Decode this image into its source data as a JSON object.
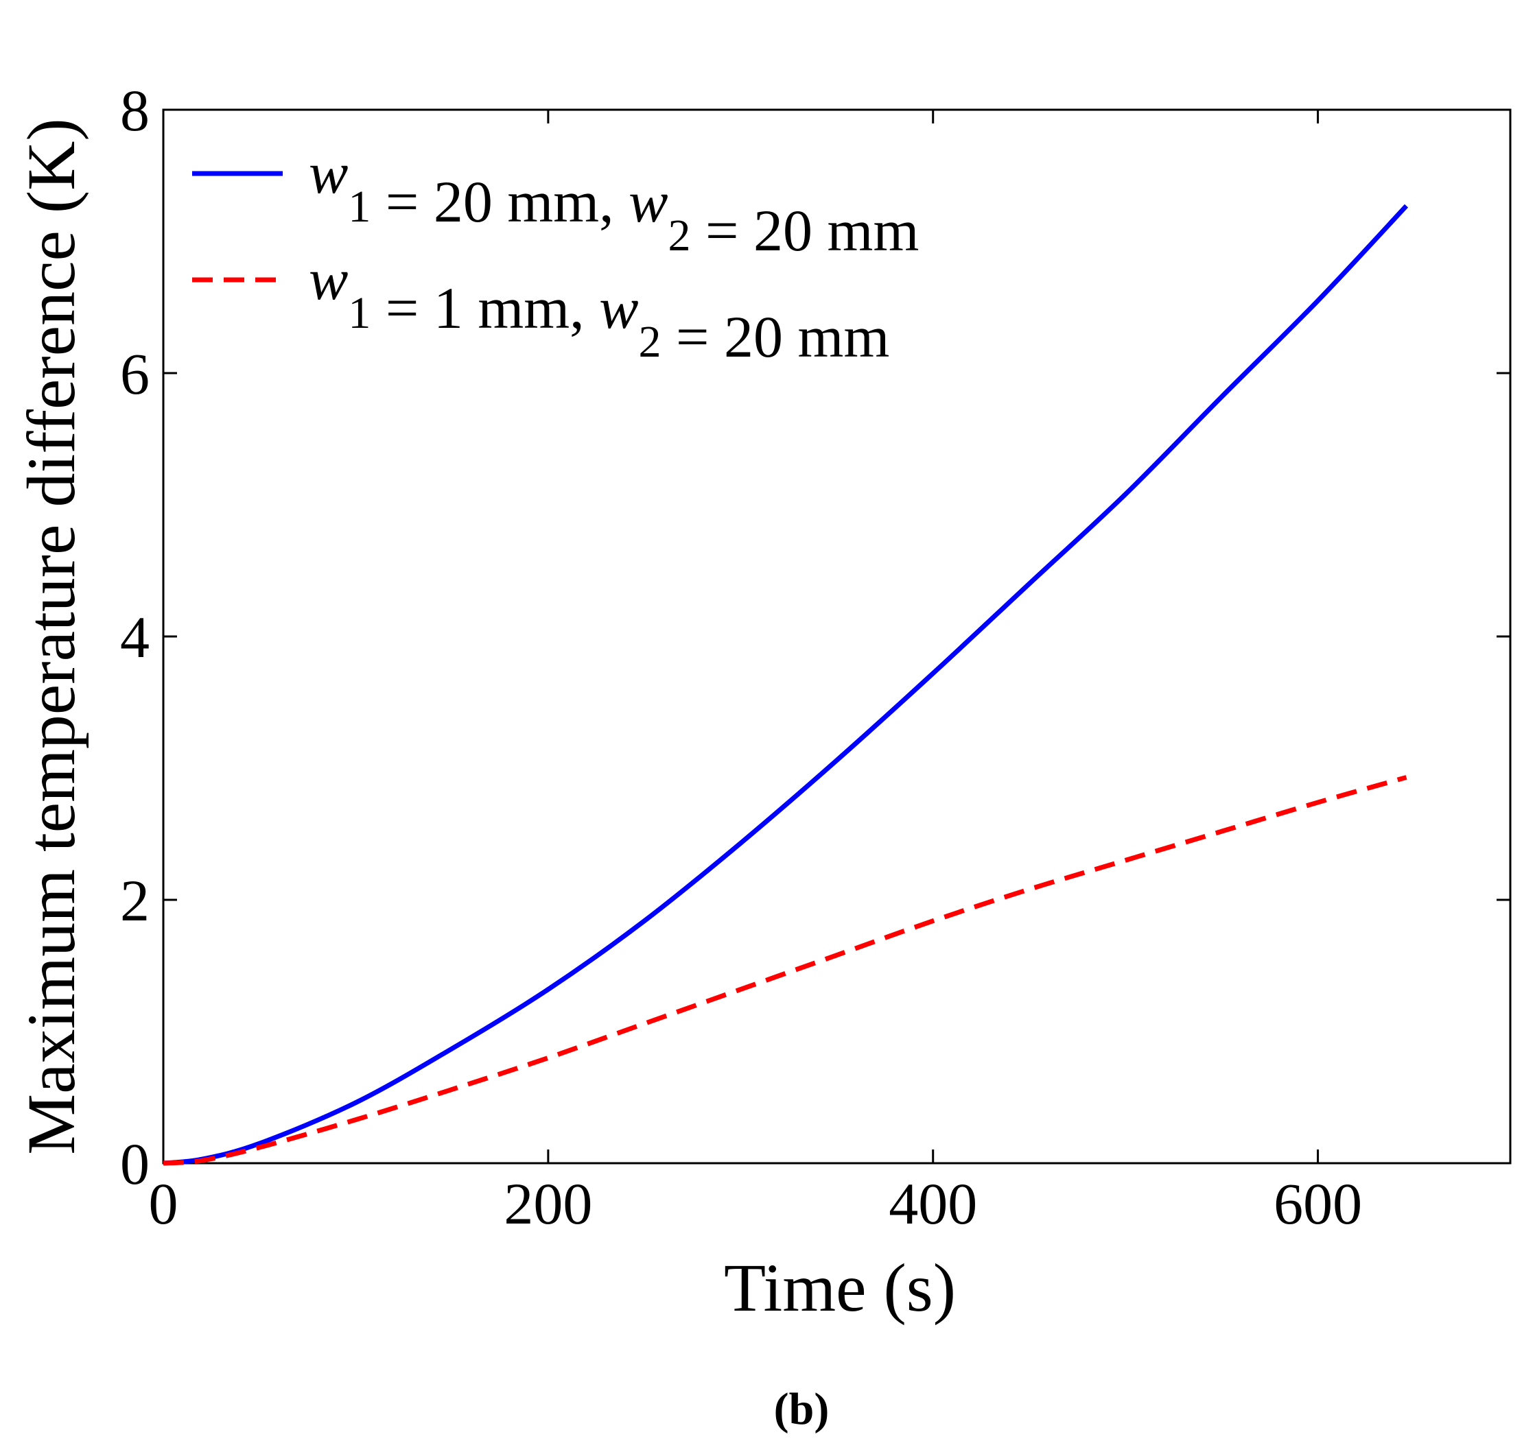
{
  "chart_data": {
    "type": "line",
    "title": "",
    "xlabel": "Time (s)",
    "ylabel": "Maximum temperature difference (K)",
    "xlim": [
      0,
      700
    ],
    "ylim": [
      0,
      8
    ],
    "x_ticks": [
      0,
      200,
      400,
      600
    ],
    "y_ticks": [
      0,
      2,
      4,
      6,
      8
    ],
    "grid": false,
    "legend_position": "top-left",
    "panel_label": "(b)",
    "series": [
      {
        "name": "w1 = 20 mm, w2 = 20 mm",
        "legend": {
          "var1": "w",
          "sub1": "1",
          "text1": " = 20 mm, ",
          "var2": "w",
          "sub2": "2",
          "text2": " = 20 mm"
        },
        "color": "#0000ff",
        "style": "solid",
        "x": [
          0,
          20,
          50,
          100,
          150,
          200,
          250,
          300,
          350,
          400,
          450,
          500,
          550,
          600,
          646
        ],
        "y": [
          0,
          0.03,
          0.15,
          0.46,
          0.87,
          1.32,
          1.84,
          2.43,
          3.06,
          3.72,
          4.4,
          5.08,
          5.82,
          6.55,
          7.27
        ]
      },
      {
        "name": "w1 = 1 mm, w2 = 20 mm",
        "legend": {
          "var1": "w",
          "sub1": "1",
          "text1": " = 1 mm, ",
          "var2": "w",
          "sub2": "2",
          "text2": " = 20 mm"
        },
        "color": "#ff0000",
        "style": "dashed",
        "x": [
          0,
          20,
          50,
          100,
          150,
          200,
          250,
          300,
          350,
          400,
          450,
          500,
          550,
          600,
          646
        ],
        "y": [
          0,
          0.02,
          0.12,
          0.33,
          0.56,
          0.8,
          1.06,
          1.32,
          1.58,
          1.84,
          2.08,
          2.3,
          2.52,
          2.74,
          2.93
        ]
      }
    ]
  }
}
